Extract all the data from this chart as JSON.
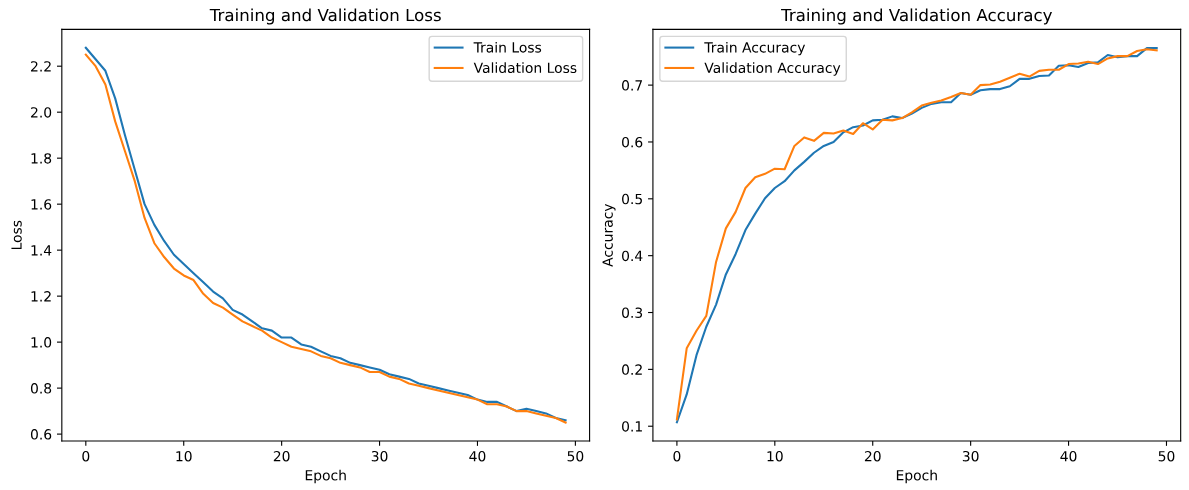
{
  "chart_data": [
    {
      "type": "line",
      "title": "Training and Validation Loss",
      "xlabel": "Epoch",
      "ylabel": "Loss",
      "x": [
        0,
        1,
        2,
        3,
        4,
        5,
        6,
        7,
        8,
        9,
        10,
        11,
        12,
        13,
        14,
        15,
        16,
        17,
        18,
        19,
        20,
        21,
        22,
        23,
        24,
        25,
        26,
        27,
        28,
        29,
        30,
        31,
        32,
        33,
        34,
        35,
        36,
        37,
        38,
        39,
        40,
        41,
        42,
        43,
        44,
        45,
        46,
        47,
        48,
        49
      ],
      "series": [
        {
          "name": "Train Loss",
          "color": "#1f77b4",
          "values": [
            2.28,
            2.23,
            2.18,
            2.06,
            1.9,
            1.75,
            1.6,
            1.51,
            1.44,
            1.38,
            1.34,
            1.3,
            1.26,
            1.22,
            1.19,
            1.14,
            1.12,
            1.09,
            1.06,
            1.05,
            1.02,
            1.02,
            0.99,
            0.98,
            0.96,
            0.94,
            0.93,
            0.91,
            0.9,
            0.89,
            0.88,
            0.86,
            0.85,
            0.84,
            0.82,
            0.81,
            0.8,
            0.79,
            0.78,
            0.77,
            0.75,
            0.74,
            0.74,
            0.72,
            0.7,
            0.71,
            0.7,
            0.69,
            0.67,
            0.66
          ]
        },
        {
          "name": "Validation Loss",
          "color": "#ff7f0e",
          "values": [
            2.25,
            2.2,
            2.12,
            1.96,
            1.83,
            1.7,
            1.54,
            1.43,
            1.37,
            1.32,
            1.29,
            1.27,
            1.21,
            1.17,
            1.15,
            1.12,
            1.09,
            1.07,
            1.05,
            1.02,
            1.0,
            0.98,
            0.97,
            0.96,
            0.94,
            0.93,
            0.91,
            0.9,
            0.89,
            0.87,
            0.87,
            0.85,
            0.84,
            0.82,
            0.81,
            0.8,
            0.79,
            0.78,
            0.77,
            0.76,
            0.75,
            0.73,
            0.73,
            0.72,
            0.7,
            0.7,
            0.69,
            0.68,
            0.67,
            0.65
          ]
        }
      ],
      "xlim": [
        -2.45,
        51.45
      ],
      "ylim": [
        0.57,
        2.36
      ],
      "xticks": [
        0,
        10,
        20,
        30,
        40,
        50
      ],
      "yticks": [
        0.6,
        0.8,
        {
          "value": 1,
          "label": "1.0"
        },
        1.2,
        1.4,
        1.6,
        1.8,
        {
          "value": 2,
          "label": "2.0"
        },
        2.2
      ],
      "legend": "top right",
      "grid": false
    },
    {
      "type": "line",
      "title": "Training and Validation Accuracy",
      "xlabel": "Epoch",
      "ylabel": "Accuracy",
      "x": [
        0,
        1,
        2,
        3,
        4,
        5,
        6,
        7,
        8,
        9,
        10,
        11,
        12,
        13,
        14,
        15,
        16,
        17,
        18,
        19,
        20,
        21,
        22,
        23,
        24,
        25,
        26,
        27,
        28,
        29,
        30,
        31,
        32,
        33,
        34,
        35,
        36,
        37,
        38,
        39,
        40,
        41,
        42,
        43,
        44,
        45,
        46,
        47,
        48,
        49
      ],
      "series": [
        {
          "name": "Train Accuracy",
          "color": "#1f77b4",
          "values": [
            0.107,
            0.156,
            0.225,
            0.275,
            0.314,
            0.367,
            0.403,
            0.445,
            0.474,
            0.501,
            0.519,
            0.531,
            0.55,
            0.565,
            0.581,
            0.593,
            0.6,
            0.617,
            0.626,
            0.629,
            0.638,
            0.639,
            0.645,
            0.642,
            0.65,
            0.66,
            0.667,
            0.67,
            0.67,
            0.686,
            0.683,
            0.691,
            0.693,
            0.693,
            0.698,
            0.711,
            0.711,
            0.716,
            0.717,
            0.734,
            0.735,
            0.732,
            0.739,
            0.74,
            0.753,
            0.749,
            0.751,
            0.751,
            0.765,
            0.765
          ]
        },
        {
          "name": "Validation Accuracy",
          "color": "#ff7f0e",
          "values": [
            0.112,
            0.237,
            0.268,
            0.294,
            0.389,
            0.448,
            0.477,
            0.519,
            0.538,
            0.544,
            0.553,
            0.552,
            0.593,
            0.608,
            0.602,
            0.616,
            0.615,
            0.62,
            0.614,
            0.633,
            0.622,
            0.639,
            0.638,
            0.642,
            0.652,
            0.664,
            0.669,
            0.673,
            0.679,
            0.686,
            0.683,
            0.7,
            0.701,
            0.706,
            0.713,
            0.72,
            0.715,
            0.725,
            0.727,
            0.727,
            0.737,
            0.738,
            0.741,
            0.737,
            0.747,
            0.751,
            0.751,
            0.76,
            0.763,
            0.761
          ]
        }
      ],
      "xlim": [
        -2.45,
        51.45
      ],
      "ylim": [
        0.074,
        0.798
      ],
      "xticks": [
        0,
        10,
        20,
        30,
        40,
        50
      ],
      "yticks": [
        0.1,
        0.2,
        0.3,
        0.4,
        0.5,
        0.6,
        0.7
      ],
      "legend": "top left",
      "grid": false
    }
  ]
}
